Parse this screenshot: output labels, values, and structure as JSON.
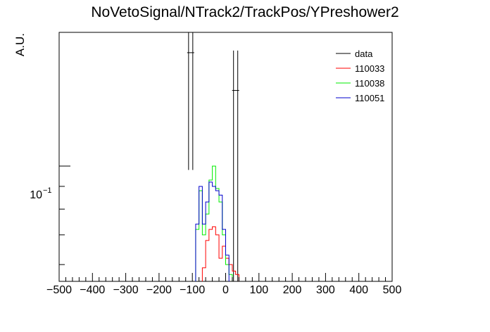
{
  "chart_data": {
    "type": "line",
    "title": "NoVetoSignal/NTrack2/TrackPos/YPreshower2",
    "xlabel": "",
    "ylabel": "A.U.",
    "xlim": [
      -500,
      500
    ],
    "ylim": [
      0.055,
      0.2
    ],
    "yscale": "log",
    "x_ticks": [
      -500,
      -400,
      -300,
      -200,
      -100,
      0,
      100,
      200,
      300,
      400,
      500
    ],
    "x_tick_labels": [
      "−500",
      "−400",
      "−300",
      "−200",
      "−100",
      "0",
      "100",
      "200",
      "300",
      "400",
      "500"
    ],
    "y_tick_label": {
      "value": 0.1,
      "base": "10",
      "exponent": "−1"
    },
    "bin_width": 10,
    "legend_position": "top-right",
    "grid": false,
    "series": [
      {
        "name": "data",
        "color": "#000000",
        "style": "error-bars",
        "points": [
          {
            "x": -105,
            "y": 0.18,
            "low": 0.098,
            "high": 0.3
          },
          {
            "x": 30,
            "y": 0.148,
            "low": 0.05,
            "high": 0.182
          }
        ]
      },
      {
        "name": "110033",
        "color": "#ff0000",
        "style": "step",
        "x_start": -70,
        "values": [
          0.059,
          0.068,
          0.072,
          0.073,
          0.07,
          0.062,
          0.066,
          0.062,
          0.06,
          0.058,
          0.057
        ]
      },
      {
        "name": "110038",
        "color": "#00ee00",
        "style": "step",
        "x_start": -90,
        "values": [
          0.072,
          0.088,
          0.07,
          0.078,
          0.093,
          0.1,
          0.089,
          0.083,
          0.07,
          0.06,
          0.057
        ]
      },
      {
        "name": "110051",
        "color": "#0000cc",
        "style": "step",
        "x_start": -90,
        "values": [
          0.074,
          0.09,
          0.074,
          0.083,
          0.092,
          0.09,
          0.088,
          0.086,
          0.072,
          0.063
        ]
      }
    ]
  }
}
